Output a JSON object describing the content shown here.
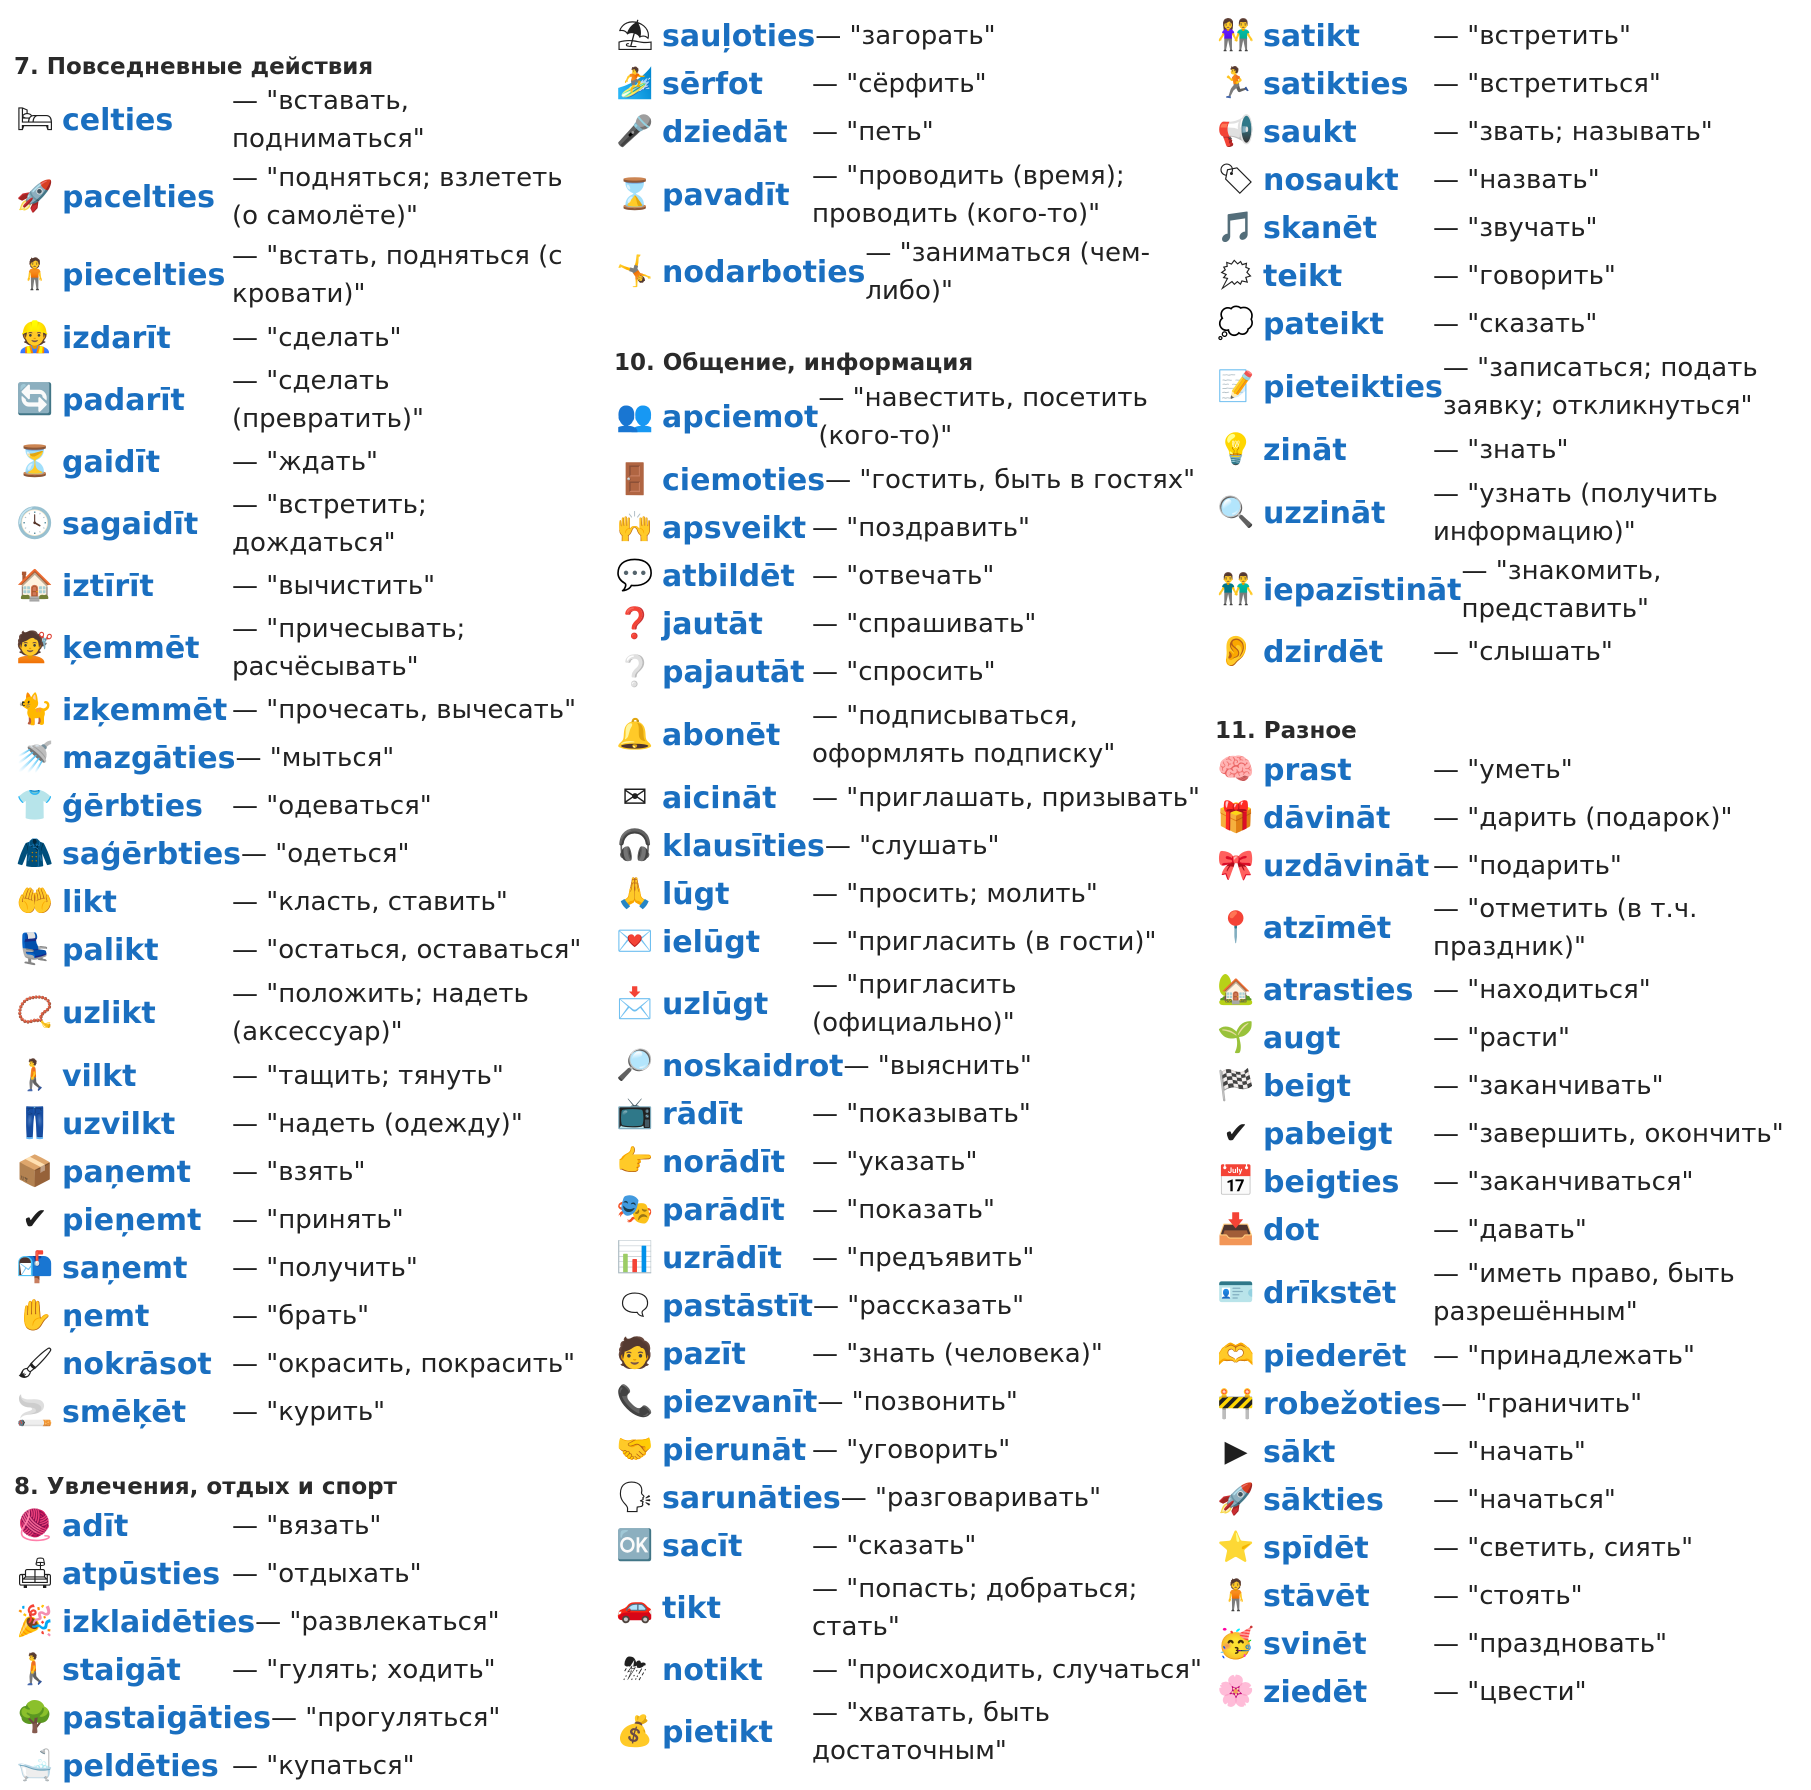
{
  "columns": [
    {
      "id": "col1",
      "top_pad": 52,
      "sections": [
        {
          "title": "7. Повседневные действия",
          "entries": [
            {
              "icon": "bed-icon",
              "glyph": "🛏",
              "word": "celties",
              "tr": "— \"вставать, подниматься\""
            },
            {
              "icon": "rocket-icon",
              "glyph": "🚀",
              "word": "pacelties",
              "tr": "— \"подняться; взлететь (о самолёте)\""
            },
            {
              "icon": "person-rising-icon",
              "glyph": "🧍",
              "word": "piecelties",
              "tr": "— \"встать, подняться (с кровати)\""
            },
            {
              "icon": "worker-icon",
              "glyph": "👷",
              "word": "izdarīt",
              "tr": "— \"сделать\""
            },
            {
              "icon": "transform-icon",
              "glyph": "🔄",
              "word": "padarīt",
              "tr": "— \"сделать (превратить)\""
            },
            {
              "icon": "waiting-icon",
              "glyph": "⏳",
              "word": "gaidīt",
              "tr": "— \"ждать\""
            },
            {
              "icon": "clock-person-icon",
              "glyph": "🕓",
              "word": "sagaidīt",
              "tr": "— \"встретить; дождаться\""
            },
            {
              "icon": "house-clean-icon",
              "glyph": "🏠",
              "word": "iztīrīt",
              "tr": "— \"вычистить\""
            },
            {
              "icon": "comb-hair-icon",
              "glyph": "💇",
              "word": "ķemmēt",
              "tr": "— \"причесывать; расчёсывать\""
            },
            {
              "icon": "cat-comb-icon",
              "glyph": "🐈",
              "word": "izķemmēt",
              "tr": "— \"прочесать, вычесать\""
            },
            {
              "icon": "shower-icon",
              "glyph": "🚿",
              "word": "mazgāties",
              "tr": "— \"мыться\""
            },
            {
              "icon": "dressing-icon",
              "glyph": "👕",
              "word": "ģērbties",
              "tr": "— \"одеваться\""
            },
            {
              "icon": "dressed-person-icon",
              "glyph": "🧥",
              "word": "saģērbties",
              "tr": "— \"одеться\""
            },
            {
              "icon": "hand-place-icon",
              "glyph": "🤲",
              "word": "likt",
              "tr": "— \"класть, ставить\""
            },
            {
              "icon": "armchair-icon",
              "glyph": "💺",
              "word": "palikt",
              "tr": "— \"остаться, оставаться\""
            },
            {
              "icon": "necklace-icon",
              "glyph": "📿",
              "word": "uzlikt",
              "tr": "— \"положить; надеть (аксессуар)\""
            },
            {
              "icon": "pulling-icon",
              "glyph": "🚶",
              "word": "vilkt",
              "tr": "— \"тащить; тянуть\""
            },
            {
              "icon": "wardrobe-icon",
              "glyph": "👖",
              "word": "uzvilkt",
              "tr": "— \"надеть (одежду)\""
            },
            {
              "icon": "take-box-icon",
              "glyph": "📦",
              "word": "paņemt",
              "tr": "— \"взять\""
            },
            {
              "icon": "check-circle-icon",
              "glyph": "✔",
              "word": "pieņemt",
              "tr": "— \"принять\""
            },
            {
              "icon": "receive-package-icon",
              "glyph": "📬",
              "word": "saņemt",
              "tr": "— \"получить\""
            },
            {
              "icon": "grab-hand-icon",
              "glyph": "✋",
              "word": "ņemt",
              "tr": "— \"брать\""
            },
            {
              "icon": "paint-icon",
              "glyph": "🖌",
              "word": "nokrāsot",
              "tr": "— \"окрасить, покрасить\""
            },
            {
              "icon": "smoking-icon",
              "glyph": "🚬",
              "word": "smēķēt",
              "tr": "— \"курить\""
            }
          ]
        },
        {
          "title": "8. Увлечения, отдых и спорт",
          "entries": [
            {
              "icon": "knitting-icon",
              "glyph": "🧶",
              "word": "adīt",
              "tr": "— \"вязать\""
            },
            {
              "icon": "relax-icon",
              "glyph": "🛋",
              "word": "atpūsties",
              "tr": "— \"отдыхать\""
            },
            {
              "icon": "party-icon",
              "glyph": "🎉",
              "word": "izklaidēties",
              "tr": "— \"развлекаться\""
            },
            {
              "icon": "walking-icon",
              "glyph": "🚶",
              "word": "staigāt",
              "tr": "— \"гулять; ходить\""
            },
            {
              "icon": "stroll-icon",
              "glyph": "🌳",
              "word": "pastaigāties",
              "tr": "— \"прогуляться\""
            },
            {
              "icon": "bath-icon",
              "glyph": "🛁",
              "word": "peldēties",
              "tr": "— \"купаться\""
            }
          ]
        }
      ]
    },
    {
      "id": "col2",
      "top_pad": 12,
      "sections": [
        {
          "title": "",
          "entries": [
            {
              "icon": "sunbathing-icon",
              "glyph": "⛱",
              "word": "sauļoties",
              "tr": "— \"загорать\""
            },
            {
              "icon": "surfing-icon",
              "glyph": "🏄",
              "word": "sērfot",
              "tr": "— \"сёрфить\""
            },
            {
              "icon": "singing-icon",
              "glyph": "🎤",
              "word": "dziedāt",
              "tr": "— \"петь\""
            },
            {
              "icon": "hourglass-icon",
              "glyph": "⌛",
              "word": "pavadīt",
              "tr": "— \"проводить (время); проводить (кого-то)\""
            },
            {
              "icon": "gymnast-icon",
              "glyph": "🤸",
              "word": "nodarboties",
              "tr": "— \"заниматься (чем-либо)\""
            }
          ]
        },
        {
          "title": "10. Общение, информация",
          "entries": [
            {
              "icon": "visit-meeting-icon",
              "glyph": "👥",
              "word": "apciemot",
              "tr": "— \"навестить, посетить (кого-то)\""
            },
            {
              "icon": "guest-door-icon",
              "glyph": "🚪",
              "word": "ciemoties",
              "tr": "— \"гостить, быть в гостях\""
            },
            {
              "icon": "celebrate-crowd-icon",
              "glyph": "🙌",
              "word": "apsveikt",
              "tr": "— \"поздравить\""
            },
            {
              "icon": "answer-bubble-icon",
              "glyph": "💬",
              "word": "atbildēt",
              "tr": "— \"отвечать\""
            },
            {
              "icon": "question-person-icon",
              "glyph": "❓",
              "word": "jautāt",
              "tr": "— \"спрашивать\""
            },
            {
              "icon": "ask-person-icon",
              "glyph": "❔",
              "word": "pajautāt",
              "tr": "— \"спросить\""
            },
            {
              "icon": "subscribe-icon",
              "glyph": "🔔",
              "word": "abonēt",
              "tr": "— \"подписываться, оформлять подписку\""
            },
            {
              "icon": "invitation-icon",
              "glyph": "✉",
              "word": "aicināt",
              "tr": "— \"приглашать, призывать\""
            },
            {
              "icon": "listening-icon",
              "glyph": "🎧",
              "word": "klausīties",
              "tr": "— \"слушать\""
            },
            {
              "icon": "pleading-icon",
              "glyph": "🙏",
              "word": "lūgt",
              "tr": "— \"просить; молить\""
            },
            {
              "icon": "invite-letter-icon",
              "glyph": "💌",
              "word": "ielūgt",
              "tr": "— \"пригласить (в гости)\""
            },
            {
              "icon": "official-letter-icon",
              "glyph": "📩",
              "word": "uzlūgt",
              "tr": "— \"пригласить (официально)\""
            },
            {
              "icon": "clarify-icon",
              "glyph": "🔎",
              "word": "noskaidrot",
              "tr": "— \"выяснить\""
            },
            {
              "icon": "tv-show-icon",
              "glyph": "📺",
              "word": "rādīt",
              "tr": "— \"показывать\""
            },
            {
              "icon": "pointing-hand-icon",
              "glyph": "👉",
              "word": "norādīt",
              "tr": "— \"указать\""
            },
            {
              "icon": "presenter-icon",
              "glyph": "🎭",
              "word": "parādīt",
              "tr": "— \"показать\""
            },
            {
              "icon": "presentation-icon",
              "glyph": "📊",
              "word": "uzrādīt",
              "tr": "— \"предъявить\""
            },
            {
              "icon": "chat-bubbles-icon",
              "glyph": "🗨",
              "word": "pastāstīt",
              "tr": "— \"рассказать\""
            },
            {
              "icon": "person-question-icon",
              "glyph": "🧑",
              "word": "pazīt",
              "tr": "— \"знать (человека)\""
            },
            {
              "icon": "phone-icon",
              "glyph": "📞",
              "word": "piezvanīt",
              "tr": "— \"позвонить\""
            },
            {
              "icon": "negotiation-icon",
              "glyph": "🤝",
              "word": "pierunāt",
              "tr": "— \"уговорить\""
            },
            {
              "icon": "conversation-icon",
              "glyph": "🗣",
              "word": "sarunāties",
              "tr": "— \"разговаривать\""
            },
            {
              "icon": "yes-no-icon",
              "glyph": "🆗",
              "word": "sacīt",
              "tr": "— \"сказать\""
            },
            {
              "icon": "arrive-icon",
              "glyph": "🚗",
              "word": "tikt",
              "tr": "— \"попасть; добраться; стать\""
            },
            {
              "icon": "event-icon",
              "glyph": "⛈",
              "word": "notikt",
              "tr": "— \"происходить, случаться\""
            },
            {
              "icon": "money-bag-icon",
              "glyph": "💰",
              "word": "pietikt",
              "tr": "— \"хватать, быть достаточным\""
            }
          ]
        }
      ]
    },
    {
      "id": "col3",
      "top_pad": 12,
      "sections": [
        {
          "title": "",
          "entries": [
            {
              "icon": "meet-people-icon",
              "glyph": "👫",
              "word": "satikt",
              "tr": "— \"встретить\""
            },
            {
              "icon": "meet-each-other-icon",
              "glyph": "🏃",
              "word": "satikties",
              "tr": "— \"встретиться\""
            },
            {
              "icon": "megaphone-icon",
              "glyph": "📢",
              "word": "saukt",
              "tr": "— \"звать; называть\""
            },
            {
              "icon": "name-tag-icon",
              "glyph": "🏷",
              "word": "nosaukt",
              "tr": "— \"назвать\""
            },
            {
              "icon": "music-note-icon",
              "glyph": "🎵",
              "word": "skanēt",
              "tr": "— \"звучать\""
            },
            {
              "icon": "talking-person-icon",
              "glyph": "🗯",
              "word": "teikt",
              "tr": "— \"говорить\""
            },
            {
              "icon": "saying-person-icon",
              "glyph": "💭",
              "word": "pateikt",
              "tr": "— \"сказать\""
            },
            {
              "icon": "register-form-icon",
              "glyph": "📝",
              "word": "pieteikties",
              "tr": "— \"записаться; подать заявку; откликнуться\""
            },
            {
              "icon": "lightbulb-icon",
              "glyph": "💡",
              "word": "zināt",
              "tr": "— \"знать\""
            },
            {
              "icon": "search-document-icon",
              "glyph": "🔍",
              "word": "uzzināt",
              "tr": "— \"узнать (получить информацию)\""
            },
            {
              "icon": "introduce-icon",
              "glyph": "👬",
              "word": "iepazīstināt",
              "tr": "— \"знакомить, представить\""
            },
            {
              "icon": "hearing-icon",
              "glyph": "👂",
              "word": "dzirdēt",
              "tr": "— \"слышать\""
            }
          ]
        },
        {
          "title": "11. Разное",
          "entries": [
            {
              "icon": "skilled-person-icon",
              "glyph": "🧠",
              "word": "prast",
              "tr": "— \"уметь\""
            },
            {
              "icon": "give-gift-icon",
              "glyph": "🎁",
              "word": "dāvināt",
              "tr": "— \"дарить (подарок)\""
            },
            {
              "icon": "gift-boxes-icon",
              "glyph": "🎀",
              "word": "uzdāvināt",
              "tr": "— \"подарить\""
            },
            {
              "icon": "map-pin-icon",
              "glyph": "📍",
              "word": "atzīmēt",
              "tr": "— \"отметить (в т.ч. праздник)\""
            },
            {
              "icon": "house-location-icon",
              "glyph": "🏡",
              "word": "atrasties",
              "tr": "— \"находиться\""
            },
            {
              "icon": "sprout-icon",
              "glyph": "🌱",
              "word": "augt",
              "tr": "— \"расти\""
            },
            {
              "icon": "finish-line-icon",
              "glyph": "🏁",
              "word": "beigt",
              "tr": "— \"заканчивать\""
            },
            {
              "icon": "checkmark-icon",
              "glyph": "✔",
              "word": "pabeigt",
              "tr": "— \"завершить, окончить\""
            },
            {
              "icon": "end-calendar-icon",
              "glyph": "📅",
              "word": "beigties",
              "tr": "— \"заканчиваться\""
            },
            {
              "icon": "give-box-icon",
              "glyph": "📥",
              "word": "dot",
              "tr": "— \"давать\""
            },
            {
              "icon": "id-card-check-icon",
              "glyph": "🪪",
              "word": "drīkstēt",
              "tr": "— \"иметь право, быть разрешённым\""
            },
            {
              "icon": "belonging-hands-icon",
              "glyph": "🫶",
              "word": "piederēt",
              "tr": "— \"принадлежать\""
            },
            {
              "icon": "border-post-icon",
              "glyph": "🚧",
              "word": "robežoties",
              "tr": "— \"граничить\""
            },
            {
              "icon": "play-button-icon",
              "glyph": "▶",
              "word": "sākt",
              "tr": "— \"начать\""
            },
            {
              "icon": "rocket-launch-icon",
              "glyph": "🚀",
              "word": "sākties",
              "tr": "— \"начаться\""
            },
            {
              "icon": "star-icon",
              "glyph": "⭐",
              "word": "spīdēt",
              "tr": "— \"светить, сиять\""
            },
            {
              "icon": "standing-person-icon",
              "glyph": "🧍",
              "word": "stāvēt",
              "tr": "— \"стоять\""
            },
            {
              "icon": "party-hat-icon",
              "glyph": "🥳",
              "word": "svinēt",
              "tr": "— \"праздновать\""
            },
            {
              "icon": "blossom-icon",
              "glyph": "🌸",
              "word": "ziedēt",
              "tr": "— \"цвести\""
            }
          ]
        }
      ]
    }
  ]
}
